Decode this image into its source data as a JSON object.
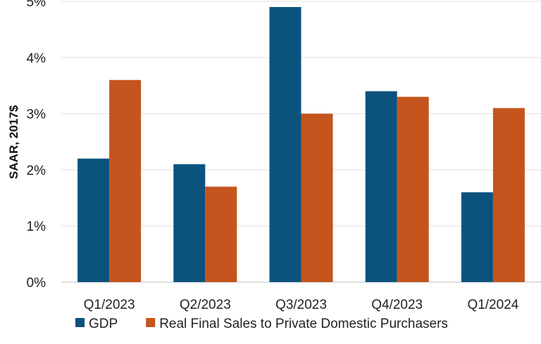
{
  "chart_data": {
    "type": "bar",
    "categories": [
      "Q1/2023",
      "Q2/2023",
      "Q3/2023",
      "Q4/2023",
      "Q1/2024"
    ],
    "series": [
      {
        "name": "GDP",
        "color": "#0b527d",
        "values": [
          2.2,
          2.1,
          4.9,
          3.4,
          1.6
        ]
      },
      {
        "name": "Real Final Sales to Private Domestic Purchasers",
        "color": "#c5541e",
        "values": [
          3.6,
          1.7,
          3.0,
          3.3,
          3.1
        ]
      }
    ],
    "ylabel": "SAAR, 2017$",
    "ylim": [
      0,
      5
    ],
    "yticks": [
      0,
      1,
      2,
      3,
      4,
      5
    ],
    "ytick_format": "%",
    "grid": true,
    "legend": "bottom"
  }
}
